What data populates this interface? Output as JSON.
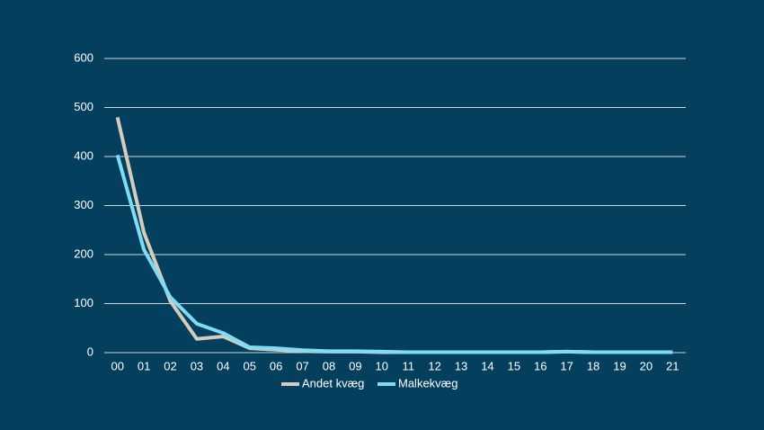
{
  "chart_data": {
    "type": "line",
    "categories": [
      "00",
      "01",
      "02",
      "03",
      "04",
      "05",
      "06",
      "07",
      "08",
      "09",
      "10",
      "11",
      "12",
      "13",
      "14",
      "15",
      "16",
      "17",
      "18",
      "19",
      "20",
      "21"
    ],
    "series": [
      {
        "name": "Andet kvæg",
        "color": "#d4cdbd",
        "values": [
          480,
          245,
          105,
          28,
          33,
          9,
          6,
          3,
          2,
          2,
          1,
          1,
          1,
          1,
          1,
          1,
          1,
          2,
          1,
          1,
          1,
          1
        ]
      },
      {
        "name": "Malkekvæg",
        "color": "#7fdcf5",
        "values": [
          403,
          210,
          113,
          59,
          40,
          11,
          9,
          5,
          3,
          3,
          2,
          1,
          1,
          1,
          1,
          1,
          1,
          2,
          1,
          1,
          1,
          1
        ]
      }
    ],
    "ylim": [
      0,
      600
    ],
    "yticks": [
      0,
      100,
      200,
      300,
      400,
      500,
      600
    ],
    "grid": true,
    "legend": "bottom"
  }
}
